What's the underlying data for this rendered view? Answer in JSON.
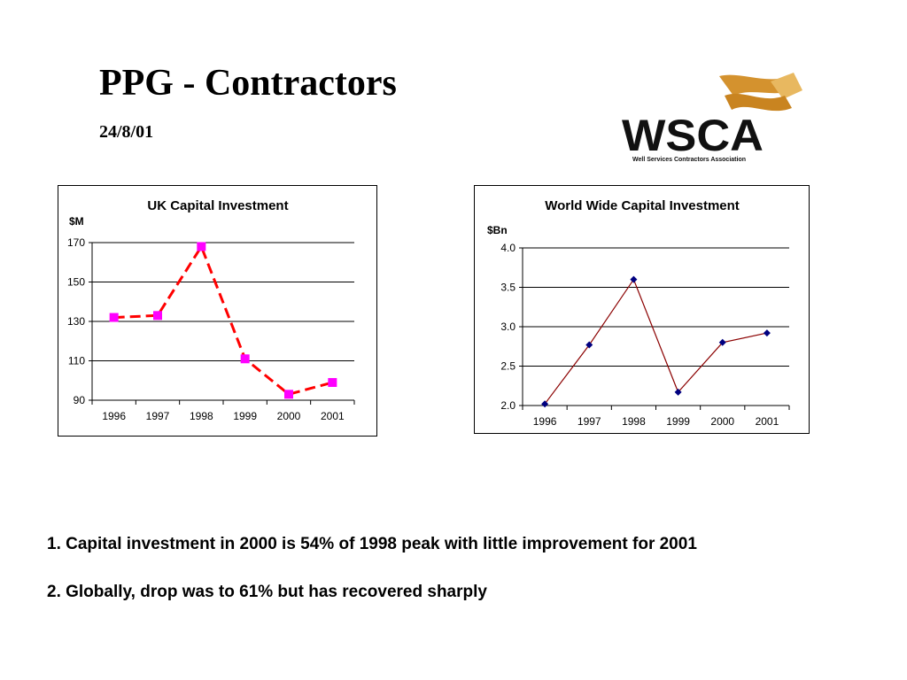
{
  "slide": {
    "title": "PPG - Contractors",
    "date": "24/8/01",
    "notes": [
      "1. Capital investment in 2000 is 54% of 1998 peak with little improvement for 2001",
      "2. Globally, drop was to 61% but has recovered sharply"
    ]
  },
  "logo": {
    "text": "WSCA",
    "subtitle": "Well Services Contractors Association",
    "colors": {
      "text": "#111111",
      "swoosh": "#d4922e",
      "swoosh_light": "#e8b860"
    }
  },
  "chart_data": [
    {
      "type": "line",
      "title": "UK Capital Investment",
      "ylabel": "$M",
      "xlabel": "",
      "categories": [
        "1996",
        "1997",
        "1998",
        "1999",
        "2000",
        "2001"
      ],
      "series": [
        {
          "values": [
            132,
            133,
            168,
            111,
            93,
            99
          ],
          "color": "#ff00ff",
          "line_color": "#ff0000",
          "line_style": "dashed",
          "marker": "square"
        }
      ],
      "ylim": [
        90,
        170
      ],
      "yticks": [
        "90",
        "110",
        "130",
        "150",
        "170"
      ],
      "grid": true,
      "legend": "none"
    },
    {
      "type": "line",
      "title": "World Wide Capital Investment",
      "ylabel": "$Bn",
      "xlabel": "",
      "categories": [
        "1996",
        "1997",
        "1998",
        "1999",
        "2000",
        "2001"
      ],
      "series": [
        {
          "values": [
            2.02,
            2.77,
            3.6,
            2.17,
            2.8,
            2.92
          ],
          "color": "#000080",
          "line_color": "#8b0000",
          "line_style": "solid",
          "marker": "diamond"
        }
      ],
      "ylim": [
        2.0,
        4.0
      ],
      "yticks": [
        "2.0",
        "2.5",
        "3.0",
        "3.5",
        "4.0"
      ],
      "grid": true,
      "legend": "none"
    }
  ]
}
